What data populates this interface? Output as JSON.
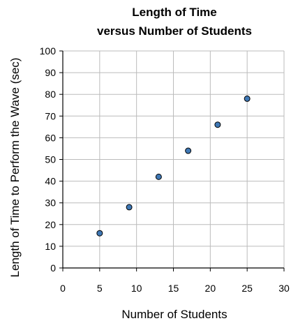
{
  "chart_data": {
    "type": "scatter",
    "title": [
      "Length of Time",
      "versus Number of Students"
    ],
    "xlabel": "Number of Students",
    "ylabel": "Length of Time to Perform the Wave (sec)",
    "xlim": [
      0,
      30
    ],
    "ylim": [
      0,
      100
    ],
    "xticks": [
      0,
      5,
      10,
      15,
      20,
      25,
      30
    ],
    "yticks": [
      0,
      10,
      20,
      30,
      40,
      50,
      60,
      70,
      80,
      90,
      100
    ],
    "grid": true,
    "series": [
      {
        "x": [
          5,
          9,
          13,
          17,
          21,
          25
        ],
        "y": [
          16,
          28,
          42,
          54,
          66,
          78
        ]
      }
    ],
    "colors": {
      "marker_fill": "#3f78b5",
      "marker_stroke": "#000000",
      "grid": "#bbbbbb",
      "axis": "#000000"
    }
  }
}
